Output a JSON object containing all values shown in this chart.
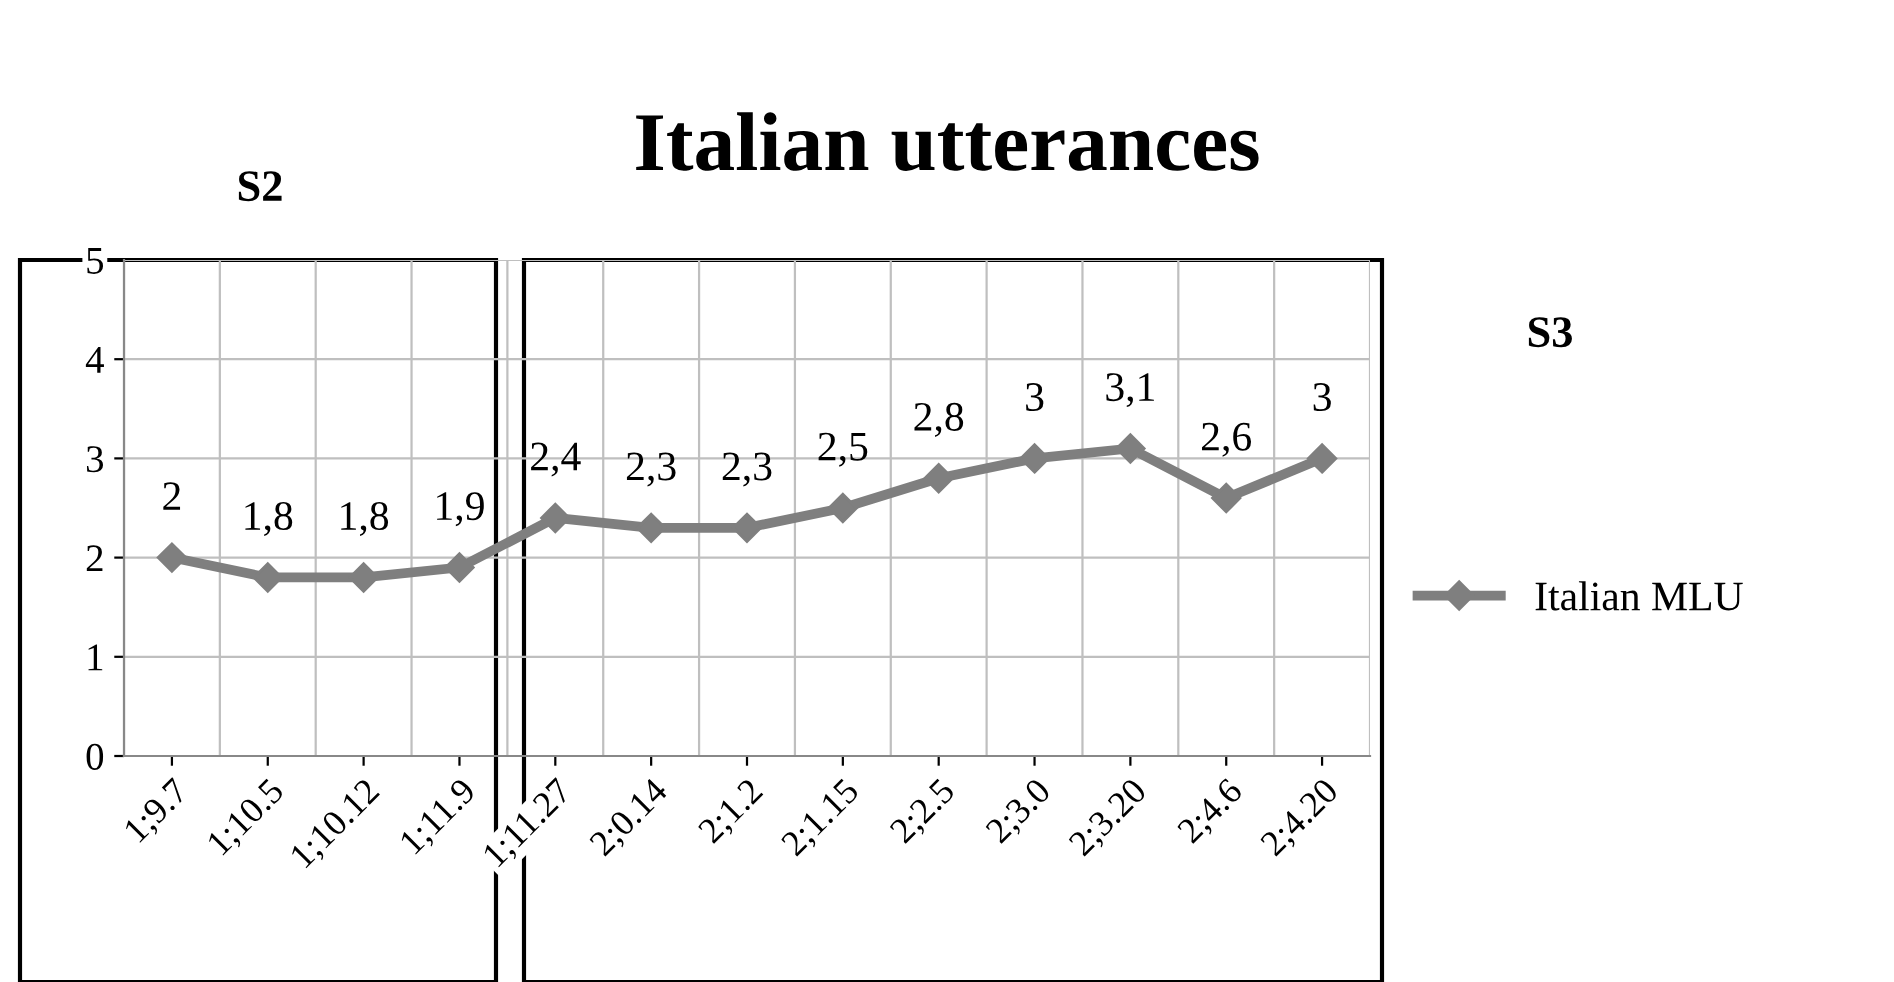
{
  "chart_data": {
    "type": "line",
    "title": "Italian utterances",
    "categories": [
      "1;9.7",
      "1;10.5",
      "1;10.12",
      "1;11.9",
      "1;11.27",
      "2;0.14",
      "2;1.2",
      "2;1.15",
      "2;2.5",
      "2;3.0",
      "2;3.20",
      "2;4.6",
      "2;4.20"
    ],
    "series": [
      {
        "name": "Italian MLU",
        "color": "#7f7f7f",
        "values": [
          2,
          1.8,
          1.8,
          1.9,
          2.4,
          2.3,
          2.3,
          2.5,
          2.8,
          3,
          3.1,
          2.6,
          3
        ],
        "value_labels": [
          "2",
          "1,8",
          "1,8",
          "1,9",
          "2,4",
          "2,3",
          "2,3",
          "2,5",
          "2,8",
          "3",
          "3,1",
          "2,6",
          "3"
        ]
      }
    ],
    "ylim": [
      0,
      5
    ],
    "yticks": [
      0,
      1,
      2,
      3,
      4,
      5
    ],
    "grid": true,
    "legend": "right",
    "marker": "diamond",
    "line_style": "solid",
    "annotations": [
      "S2",
      "S3"
    ]
  }
}
